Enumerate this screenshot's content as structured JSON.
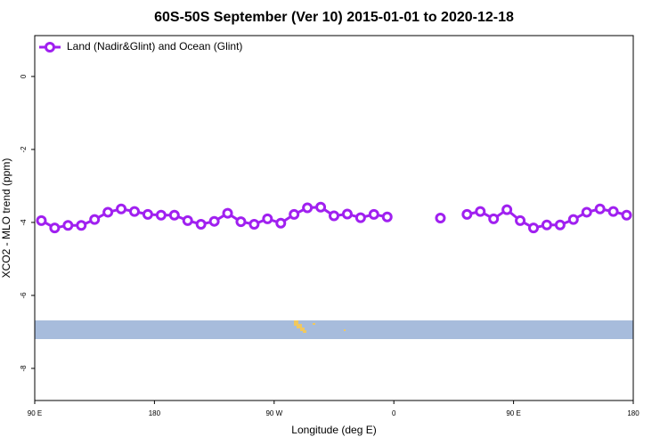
{
  "chart_data": {
    "type": "line",
    "title": "60S-50S September (Ver 10)   2015-01-01 to 2020-12-18",
    "x_label": "Longitude (deg E)",
    "y_label": "XCO2 - MLO trend (ppm)",
    "xlim": [
      90,
      540
    ],
    "xticks": [
      {
        "value": 90,
        "label": "90 E"
      },
      {
        "value": 180,
        "label": "180"
      },
      {
        "value": 270,
        "label": "90 W"
      },
      {
        "value": 360,
        "label": "0"
      },
      {
        "value": 450,
        "label": "90 E"
      },
      {
        "value": 540,
        "label": "180"
      }
    ],
    "ylim": [
      -8.88,
      1.12
    ],
    "yticks": [
      0,
      -2,
      -4,
      -6,
      -8
    ],
    "legend": "top-left",
    "x": [
      95,
      105,
      115,
      125,
      135,
      145,
      155,
      165,
      175,
      185,
      195,
      205,
      215,
      225,
      235,
      245,
      255,
      265,
      275,
      285,
      295,
      305,
      315,
      325,
      335,
      345,
      355,
      365,
      375,
      385,
      395,
      405,
      415,
      425,
      435,
      445,
      455,
      465,
      475,
      485,
      495,
      505,
      515,
      525,
      535
    ],
    "series": [
      {
        "name": "Land (Nadir&Glint) and Ocean (Glint)",
        "color": "#a020f0",
        "values": [
          -3.95,
          -4.15,
          -4.08,
          -4.08,
          -3.92,
          -3.72,
          -3.63,
          -3.7,
          -3.78,
          -3.8,
          -3.8,
          -3.95,
          -4.05,
          -3.97,
          -3.75,
          -3.98,
          -4.05,
          -3.9,
          -4.02,
          -3.78,
          -3.6,
          -3.58,
          -3.82,
          -3.77,
          -3.87,
          -3.78,
          -3.85,
          null,
          null,
          null,
          -3.88,
          null,
          -3.78,
          -3.7,
          -3.9,
          -3.65,
          -3.95,
          -4.15,
          -4.07,
          -4.07,
          -3.92,
          -3.72,
          -3.63,
          -3.7,
          -3.8
        ]
      }
    ]
  }
}
